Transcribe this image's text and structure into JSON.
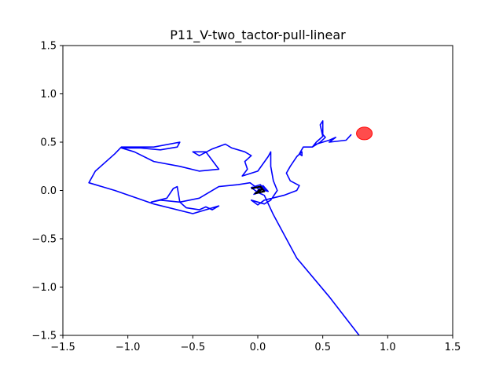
{
  "chart_data": {
    "type": "line",
    "title": "P11_V-two_tactor-pull-linear",
    "xlabel": "",
    "ylabel": "",
    "xlim": [
      -1.5,
      1.5
    ],
    "ylim": [
      -1.5,
      1.5
    ],
    "xticks": [
      "−1.5",
      "−1.0",
      "−0.5",
      "0.0",
      "0.5",
      "1.0",
      "1.5"
    ],
    "yticks": [
      "1.5",
      "1.0",
      "0.5",
      "0.0",
      "−0.5",
      "−1.0",
      "−1.5"
    ],
    "grid": false,
    "series": [
      {
        "color": "#0000ff",
        "points": [
          [
            0.78,
            -1.5
          ],
          [
            0.55,
            -1.1
          ],
          [
            0.3,
            -0.7
          ],
          [
            0.12,
            -0.25
          ],
          [
            0.05,
            -0.05
          ],
          [
            0.0,
            -0.02
          ],
          [
            -0.05,
            0.03
          ],
          [
            0.02,
            0.06
          ],
          [
            0.06,
            0.0
          ],
          [
            -0.03,
            -0.04
          ],
          [
            0.04,
            0.05
          ],
          [
            0.08,
            -0.01
          ],
          [
            0.0,
            0.02
          ],
          [
            -0.06,
            0.08
          ],
          [
            -0.15,
            0.06
          ],
          [
            -0.3,
            0.04
          ],
          [
            -0.45,
            -0.08
          ],
          [
            -0.6,
            -0.12
          ],
          [
            -0.75,
            -0.1
          ],
          [
            -0.82,
            -0.12
          ],
          [
            -0.7,
            -0.08
          ],
          [
            -0.65,
            0.02
          ],
          [
            -0.62,
            0.04
          ],
          [
            -0.6,
            -0.12
          ],
          [
            -0.55,
            -0.18
          ],
          [
            -0.45,
            -0.2
          ],
          [
            -0.4,
            -0.17
          ],
          [
            -0.35,
            -0.2
          ],
          [
            -0.3,
            -0.16
          ],
          [
            -0.5,
            -0.24
          ],
          [
            -0.8,
            -0.14
          ],
          [
            -1.1,
            0.0
          ],
          [
            -1.3,
            0.08
          ],
          [
            -1.25,
            0.2
          ],
          [
            -1.1,
            0.38
          ],
          [
            -1.05,
            0.45
          ],
          [
            -0.8,
            0.45
          ],
          [
            -0.6,
            0.5
          ],
          [
            -0.62,
            0.45
          ],
          [
            -0.75,
            0.42
          ],
          [
            -0.9,
            0.44
          ],
          [
            -1.05,
            0.44
          ],
          [
            -0.95,
            0.4
          ],
          [
            -0.8,
            0.3
          ],
          [
            -0.6,
            0.25
          ],
          [
            -0.45,
            0.2
          ],
          [
            -0.3,
            0.22
          ],
          [
            -0.4,
            0.4
          ],
          [
            -0.5,
            0.4
          ],
          [
            -0.45,
            0.36
          ],
          [
            -0.35,
            0.43
          ],
          [
            -0.25,
            0.48
          ],
          [
            -0.2,
            0.44
          ],
          [
            -0.1,
            0.4
          ],
          [
            -0.05,
            0.36
          ],
          [
            -0.1,
            0.3
          ],
          [
            -0.08,
            0.22
          ],
          [
            -0.12,
            0.15
          ],
          [
            0.0,
            0.2
          ],
          [
            0.08,
            0.35
          ],
          [
            0.1,
            0.4
          ],
          [
            0.1,
            0.25
          ],
          [
            0.12,
            0.1
          ],
          [
            0.15,
            0.0
          ],
          [
            0.1,
            -0.1
          ],
          [
            0.05,
            -0.14
          ],
          [
            -0.05,
            -0.1
          ],
          [
            0.0,
            -0.15
          ],
          [
            0.05,
            -0.1
          ],
          [
            0.2,
            -0.05
          ],
          [
            0.3,
            0.0
          ],
          [
            0.32,
            0.05
          ],
          [
            0.25,
            0.1
          ],
          [
            0.22,
            0.18
          ],
          [
            0.25,
            0.25
          ],
          [
            0.3,
            0.35
          ],
          [
            0.34,
            0.4
          ],
          [
            0.34,
            0.36
          ],
          [
            0.32,
            0.38
          ],
          [
            0.35,
            0.45
          ],
          [
            0.42,
            0.45
          ],
          [
            0.45,
            0.5
          ],
          [
            0.5,
            0.56
          ],
          [
            0.48,
            0.68
          ],
          [
            0.5,
            0.72
          ],
          [
            0.5,
            0.58
          ],
          [
            0.52,
            0.55
          ],
          [
            0.48,
            0.5
          ],
          [
            0.42,
            0.45
          ],
          [
            0.45,
            0.48
          ],
          [
            0.55,
            0.52
          ],
          [
            0.6,
            0.55
          ],
          [
            0.55,
            0.5
          ],
          [
            0.68,
            0.52
          ],
          [
            0.72,
            0.58
          ]
        ]
      },
      {
        "color": "#000000",
        "points": [
          [
            -0.05,
            0.02
          ],
          [
            0.02,
            0.04
          ],
          [
            0.05,
            -0.01
          ],
          [
            -0.02,
            -0.03
          ],
          [
            0.03,
            0.01
          ],
          [
            0.0,
            0.0
          ]
        ]
      }
    ],
    "marker": {
      "x": 0.82,
      "y": 0.59,
      "color": "#ff0000"
    }
  }
}
